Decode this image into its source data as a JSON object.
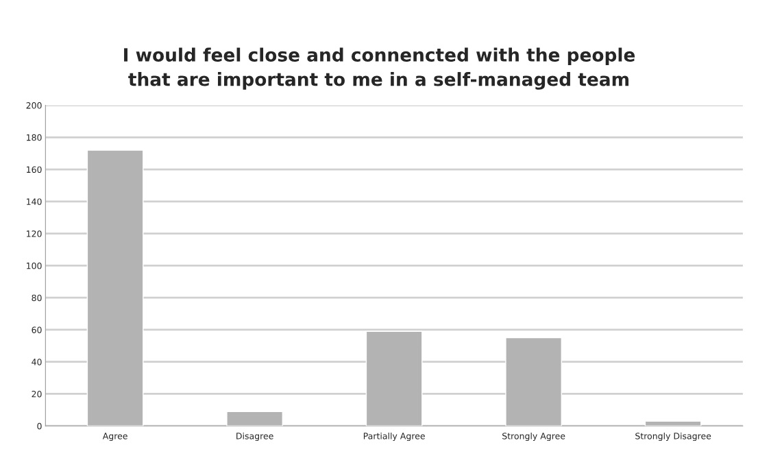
{
  "chart_data": {
    "type": "bar",
    "title": "I would feel close and connencted with the people\nthat are important to me in a self-managed team",
    "categories": [
      "Agree",
      "Disagree",
      "Partially Agree",
      "Strongly Agree",
      "Strongly Disagree"
    ],
    "values": [
      172,
      9,
      59,
      55,
      3
    ],
    "color": "#b3b3b3",
    "ylim": [
      0,
      200
    ],
    "yticks": [
      0,
      20,
      40,
      60,
      80,
      100,
      120,
      140,
      160,
      180,
      200
    ],
    "grid": "y"
  }
}
